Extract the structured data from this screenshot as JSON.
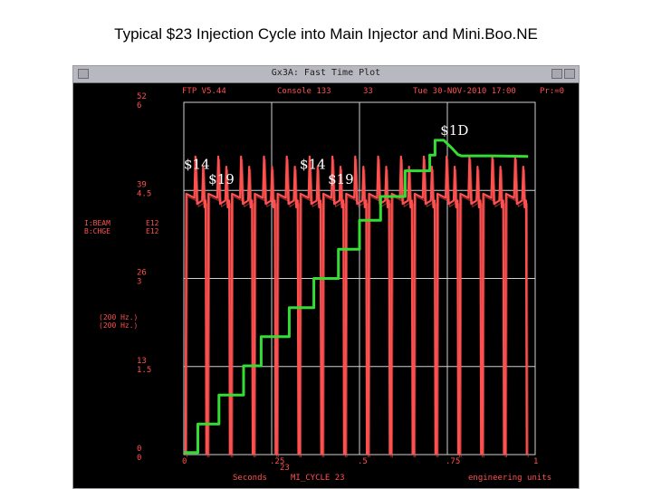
{
  "slide": {
    "title": "Typical $23 Injection Cycle into Main Injector and  Mini.Boo.NE"
  },
  "window": {
    "title": "Gx3A: Fast Time Plot",
    "header": {
      "program": "FTP V5.44",
      "console": "Console 133",
      "slot": "33",
      "datetime": "Tue 30-NOV-2010 17:00",
      "page": "Pr:=0"
    }
  },
  "chart_data": {
    "type": "line",
    "title": "Typical $23 Injection Cycle into Main Injector and  Mini.Boo.NE",
    "xlabel": "Seconds",
    "xlabel_mid": "MI_CYCLE  23",
    "xlabel_right": "engineering units",
    "xlim": [
      0,
      1
    ],
    "x_ticks": [
      {
        "value": 0,
        "label": "0"
      },
      {
        "value": 0.25,
        "label": ".25"
      },
      {
        "value": 0.5,
        "label": ".5"
      },
      {
        "value": 0.75,
        "label": ".75"
      },
      {
        "value": 1,
        "label": "1"
      }
    ],
    "x_sub_label": "23",
    "ylim": [
      0,
      52
    ],
    "y_ticks": [
      {
        "value": 52,
        "upper": "52",
        "lower": "6"
      },
      {
        "value": 39,
        "upper": "39",
        "lower": "4.5"
      },
      {
        "value": 26,
        "upper": "26",
        "lower": "3"
      },
      {
        "value": 13,
        "upper": "13",
        "lower": "1.5"
      },
      {
        "value": 0,
        "upper": "0",
        "lower": "0"
      }
    ],
    "legend": [
      {
        "device": "I:BEAM",
        "range": "E12",
        "units": "(200 Hz.)",
        "color": "#ff5050"
      },
      {
        "device": "B:CHGE",
        "range": "E12",
        "units": "(200 Hz.)",
        "color": "#ff5050"
      }
    ],
    "series": [
      {
        "color": "#33dd33",
        "points": [
          [
            0,
            0.3
          ],
          [
            0.04,
            0.3
          ],
          [
            0.04,
            4.5
          ],
          [
            0.1,
            4.5
          ],
          [
            0.1,
            8.8
          ],
          [
            0.17,
            8.8
          ],
          [
            0.17,
            13.1
          ],
          [
            0.22,
            13.1
          ],
          [
            0.22,
            17.4
          ],
          [
            0.3,
            17.4
          ],
          [
            0.3,
            21.7
          ],
          [
            0.37,
            21.7
          ],
          [
            0.37,
            26
          ],
          [
            0.44,
            26
          ],
          [
            0.44,
            30.3
          ],
          [
            0.5,
            30.3
          ],
          [
            0.5,
            34.6
          ],
          [
            0.56,
            34.6
          ],
          [
            0.56,
            38.1
          ],
          [
            0.63,
            38.1
          ],
          [
            0.63,
            41.9
          ],
          [
            0.7,
            41.9
          ],
          [
            0.7,
            44.2
          ],
          [
            0.715,
            44.2
          ],
          [
            0.715,
            46.4
          ],
          [
            0.74,
            46.4
          ],
          [
            0.76,
            45.4
          ],
          [
            0.78,
            44.3
          ],
          [
            0.79,
            44.1
          ],
          [
            0.88,
            44.1
          ],
          [
            0.98,
            44.0
          ]
        ]
      },
      {
        "color": "#ff5050",
        "cycles": [
          [
            0.005,
            0.03,
            0.052,
            0.068
          ],
          [
            0.068,
            0.095,
            0.118,
            0.135
          ],
          [
            0.135,
            0.16,
            0.183,
            0.2
          ],
          [
            0.2,
            0.225,
            0.248,
            0.265
          ],
          [
            0.265,
            0.29,
            0.313,
            0.33
          ],
          [
            0.33,
            0.355,
            0.378,
            0.395
          ],
          [
            0.395,
            0.42,
            0.443,
            0.46
          ],
          [
            0.46,
            0.485,
            0.508,
            0.525
          ],
          [
            0.525,
            0.55,
            0.573,
            0.59
          ],
          [
            0.59,
            0.615,
            0.638,
            0.655
          ],
          [
            0.655,
            0.68,
            0.703,
            0.72
          ],
          [
            0.72,
            0.745,
            0.768,
            0.785
          ],
          [
            0.785,
            0.81,
            0.833,
            0.85
          ],
          [
            0.85,
            0.875,
            0.898,
            0.915
          ],
          [
            0.915,
            0.94,
            0.963,
            0.98
          ]
        ],
        "flat_top": 38.5,
        "spike_top": 44,
        "base": 0
      }
    ],
    "annotations": [
      {
        "text": "$14",
        "x": 0.0,
        "y": 42.2
      },
      {
        "text": "$19",
        "x": 0.07,
        "y": 40.0
      },
      {
        "text": "$14",
        "x": 0.33,
        "y": 42.2
      },
      {
        "text": "$19",
        "x": 0.41,
        "y": 40.0
      },
      {
        "text": "$1D",
        "x": 0.73,
        "y": 47.2
      }
    ]
  }
}
